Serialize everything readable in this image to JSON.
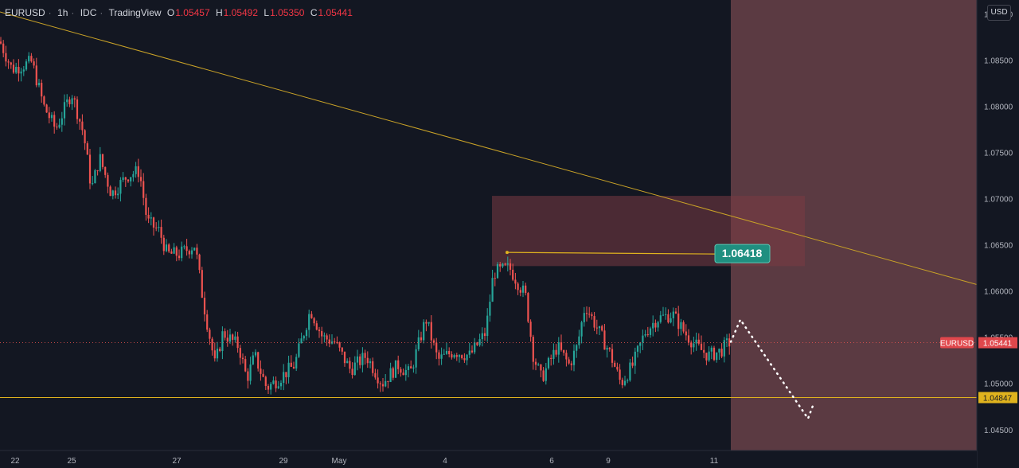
{
  "header": {
    "symbol": "EURUSD",
    "interval": "1h",
    "exchange": "IDC",
    "platform": "TradingView",
    "ohlc": [
      {
        "key": "O",
        "value": "1.05457"
      },
      {
        "key": "H",
        "value": "1.05492"
      },
      {
        "key": "L",
        "value": "1.05350"
      },
      {
        "key": "C",
        "value": "1.05441"
      }
    ]
  },
  "currency_button": "USD",
  "colors": {
    "background": "#131722",
    "up": "#26a69a",
    "down": "#ef5350",
    "trendline": "#c9a227",
    "support": "#e0b31e",
    "forecast_zone": "#5f3c45",
    "resistance_zone": "#5a2c33",
    "target_label": "#1f8f80",
    "price_label": "#e0474c"
  },
  "chart_data": {
    "type": "candlestick",
    "symbol": "EURUSD",
    "timeframe": "1h",
    "ylim": [
      1.043,
      1.0915
    ],
    "y_ticks": [
      "1.04500",
      "1.05000",
      "1.05500",
      "1.06000",
      "1.06500",
      "1.07000",
      "1.07500",
      "1.08000",
      "1.08500",
      "1.09000"
    ],
    "x_ticks": [
      "22",
      "25",
      "27",
      "29",
      "May",
      "4",
      "6",
      "9",
      "11"
    ],
    "current_price": {
      "label": "EURUSD",
      "value": "1.05441"
    },
    "support_level": {
      "value": "1.04847"
    },
    "target_label": {
      "value": "1.06418"
    },
    "trendline": {
      "from_price": 1.0915,
      "to_price": 1.0607
    },
    "resistance_zone": {
      "low": 1.0627,
      "high": 1.0703
    },
    "forecast_path": [
      1.0545,
      1.0569,
      1.0462,
      1.0478
    ],
    "anchors": [
      [
        0,
        1.087
      ],
      [
        15,
        1.084
      ],
      [
        40,
        1.0848
      ],
      [
        55,
        1.08
      ],
      [
        70,
        1.0775
      ],
      [
        90,
        1.0815
      ],
      [
        105,
        1.077
      ],
      [
        115,
        1.071
      ],
      [
        125,
        1.0745
      ],
      [
        140,
        1.0705
      ],
      [
        160,
        1.0725
      ],
      [
        175,
        1.073
      ],
      [
        185,
        1.0675
      ],
      [
        200,
        1.0665
      ],
      [
        210,
        1.064
      ],
      [
        225,
        1.064
      ],
      [
        245,
        1.065
      ],
      [
        255,
        1.059
      ],
      [
        270,
        1.052
      ],
      [
        280,
        1.0555
      ],
      [
        300,
        1.054
      ],
      [
        310,
        1.0505
      ],
      [
        320,
        1.053
      ],
      [
        335,
        1.0495
      ],
      [
        350,
        1.0505
      ],
      [
        370,
        1.052
      ],
      [
        390,
        1.058
      ],
      [
        405,
        1.055
      ],
      [
        420,
        1.0545
      ],
      [
        440,
        1.0515
      ],
      [
        460,
        1.053
      ],
      [
        480,
        1.05
      ],
      [
        500,
        1.052
      ],
      [
        515,
        1.051
      ],
      [
        535,
        1.057
      ],
      [
        550,
        1.0525
      ],
      [
        570,
        1.0535
      ],
      [
        590,
        1.053
      ],
      [
        610,
        1.0555
      ],
      [
        620,
        1.062
      ],
      [
        640,
        1.0625
      ],
      [
        660,
        1.0595
      ],
      [
        670,
        1.053
      ],
      [
        680,
        1.0505
      ],
      [
        700,
        1.054
      ],
      [
        715,
        1.052
      ],
      [
        725,
        1.054
      ],
      [
        735,
        1.0585
      ],
      [
        750,
        1.056
      ],
      [
        765,
        1.0535
      ],
      [
        780,
        1.05
      ],
      [
        795,
        1.052
      ],
      [
        810,
        1.0555
      ],
      [
        825,
        1.057
      ],
      [
        845,
        1.0575
      ],
      [
        860,
        1.0555
      ],
      [
        875,
        1.054
      ],
      [
        890,
        1.053
      ],
      [
        905,
        1.0535
      ],
      [
        915,
        1.0544
      ]
    ]
  }
}
